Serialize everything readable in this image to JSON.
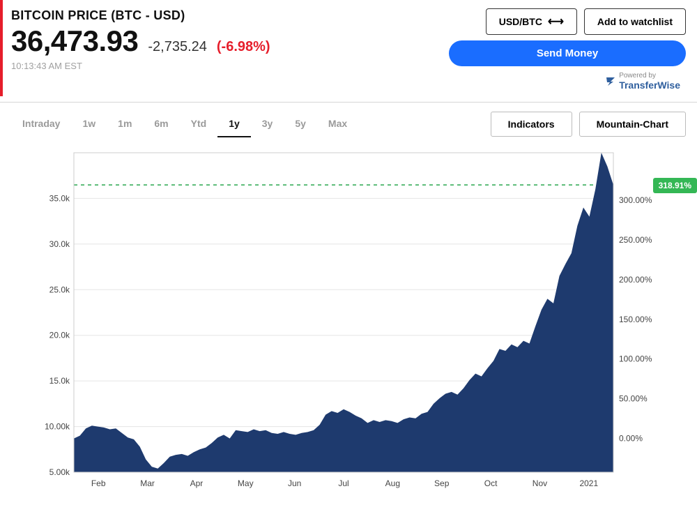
{
  "header": {
    "title": "BITCOIN PRICE (BTC - USD)",
    "price": "36,473.93",
    "change_abs": "-2,735.24",
    "change_pct": "(-6.98%)",
    "timestamp": "10:13:43 AM EST",
    "accent_bar_color": "#e61e2b"
  },
  "actions": {
    "pair_toggle": "USD/BTC",
    "watchlist": "Add to watchlist",
    "send_money": "Send Money",
    "powered_label": "Powered by",
    "powered_brand": "TransferWise"
  },
  "ranges": {
    "items": [
      "Intraday",
      "1w",
      "1m",
      "6m",
      "Ytd",
      "1y",
      "3y",
      "5y",
      "Max"
    ],
    "active_index": 5
  },
  "chart_controls": {
    "indicators": "Indicators",
    "chart_type": "Mountain-Chart"
  },
  "chart": {
    "type": "area",
    "fill_color": "#1e3a6e",
    "background_color": "#ffffff",
    "grid_color": "#e5e5e5",
    "reference_line_color": "#2aa84f",
    "reference_label": "318.91%",
    "reference_value_left": 36473.93,
    "badge_bg": "#34b755",
    "y_left": {
      "min": 5000,
      "max": 40000,
      "ticks": [
        5000,
        10000,
        15000,
        20000,
        25000,
        30000,
        35000
      ],
      "labels": [
        "5.00k",
        "10.00k",
        "15.0k",
        "20.0k",
        "25.0k",
        "30.0k",
        "35.0k"
      ]
    },
    "y_right": {
      "ticks": [
        0,
        50,
        100,
        150,
        200,
        250,
        300
      ],
      "labels": [
        "0.00%",
        "50.00%",
        "100.00%",
        "150.00%",
        "200.00%",
        "250.00%",
        "300.00%"
      ]
    },
    "x_labels": [
      "Feb",
      "Mar",
      "Apr",
      "May",
      "Jun",
      "Jul",
      "Aug",
      "Sep",
      "Oct",
      "Nov",
      "2021"
    ],
    "series": [
      8700,
      9000,
      9800,
      10100,
      10000,
      9900,
      9700,
      9800,
      9300,
      8800,
      8600,
      7800,
      6400,
      5600,
      5400,
      6000,
      6700,
      6900,
      7000,
      6800,
      7200,
      7500,
      7700,
      8200,
      8800,
      9100,
      8700,
      9600,
      9500,
      9400,
      9700,
      9500,
      9600,
      9300,
      9200,
      9400,
      9200,
      9100,
      9300,
      9400,
      9600,
      10200,
      11300,
      11700,
      11500,
      11900,
      11600,
      11200,
      10900,
      10400,
      10700,
      10500,
      10700,
      10600,
      10400,
      10800,
      11000,
      10900,
      11400,
      11600,
      12500,
      13100,
      13600,
      13800,
      13500,
      14200,
      15100,
      15800,
      15500,
      16400,
      17200,
      18500,
      18300,
      19000,
      18700,
      19400,
      19100,
      21000,
      22800,
      24000,
      23500,
      26500,
      27800,
      29000,
      32000,
      34000,
      33000,
      36000,
      40000,
      38500,
      36473
    ],
    "label_fontsize": 12,
    "label_color": "#444444"
  }
}
